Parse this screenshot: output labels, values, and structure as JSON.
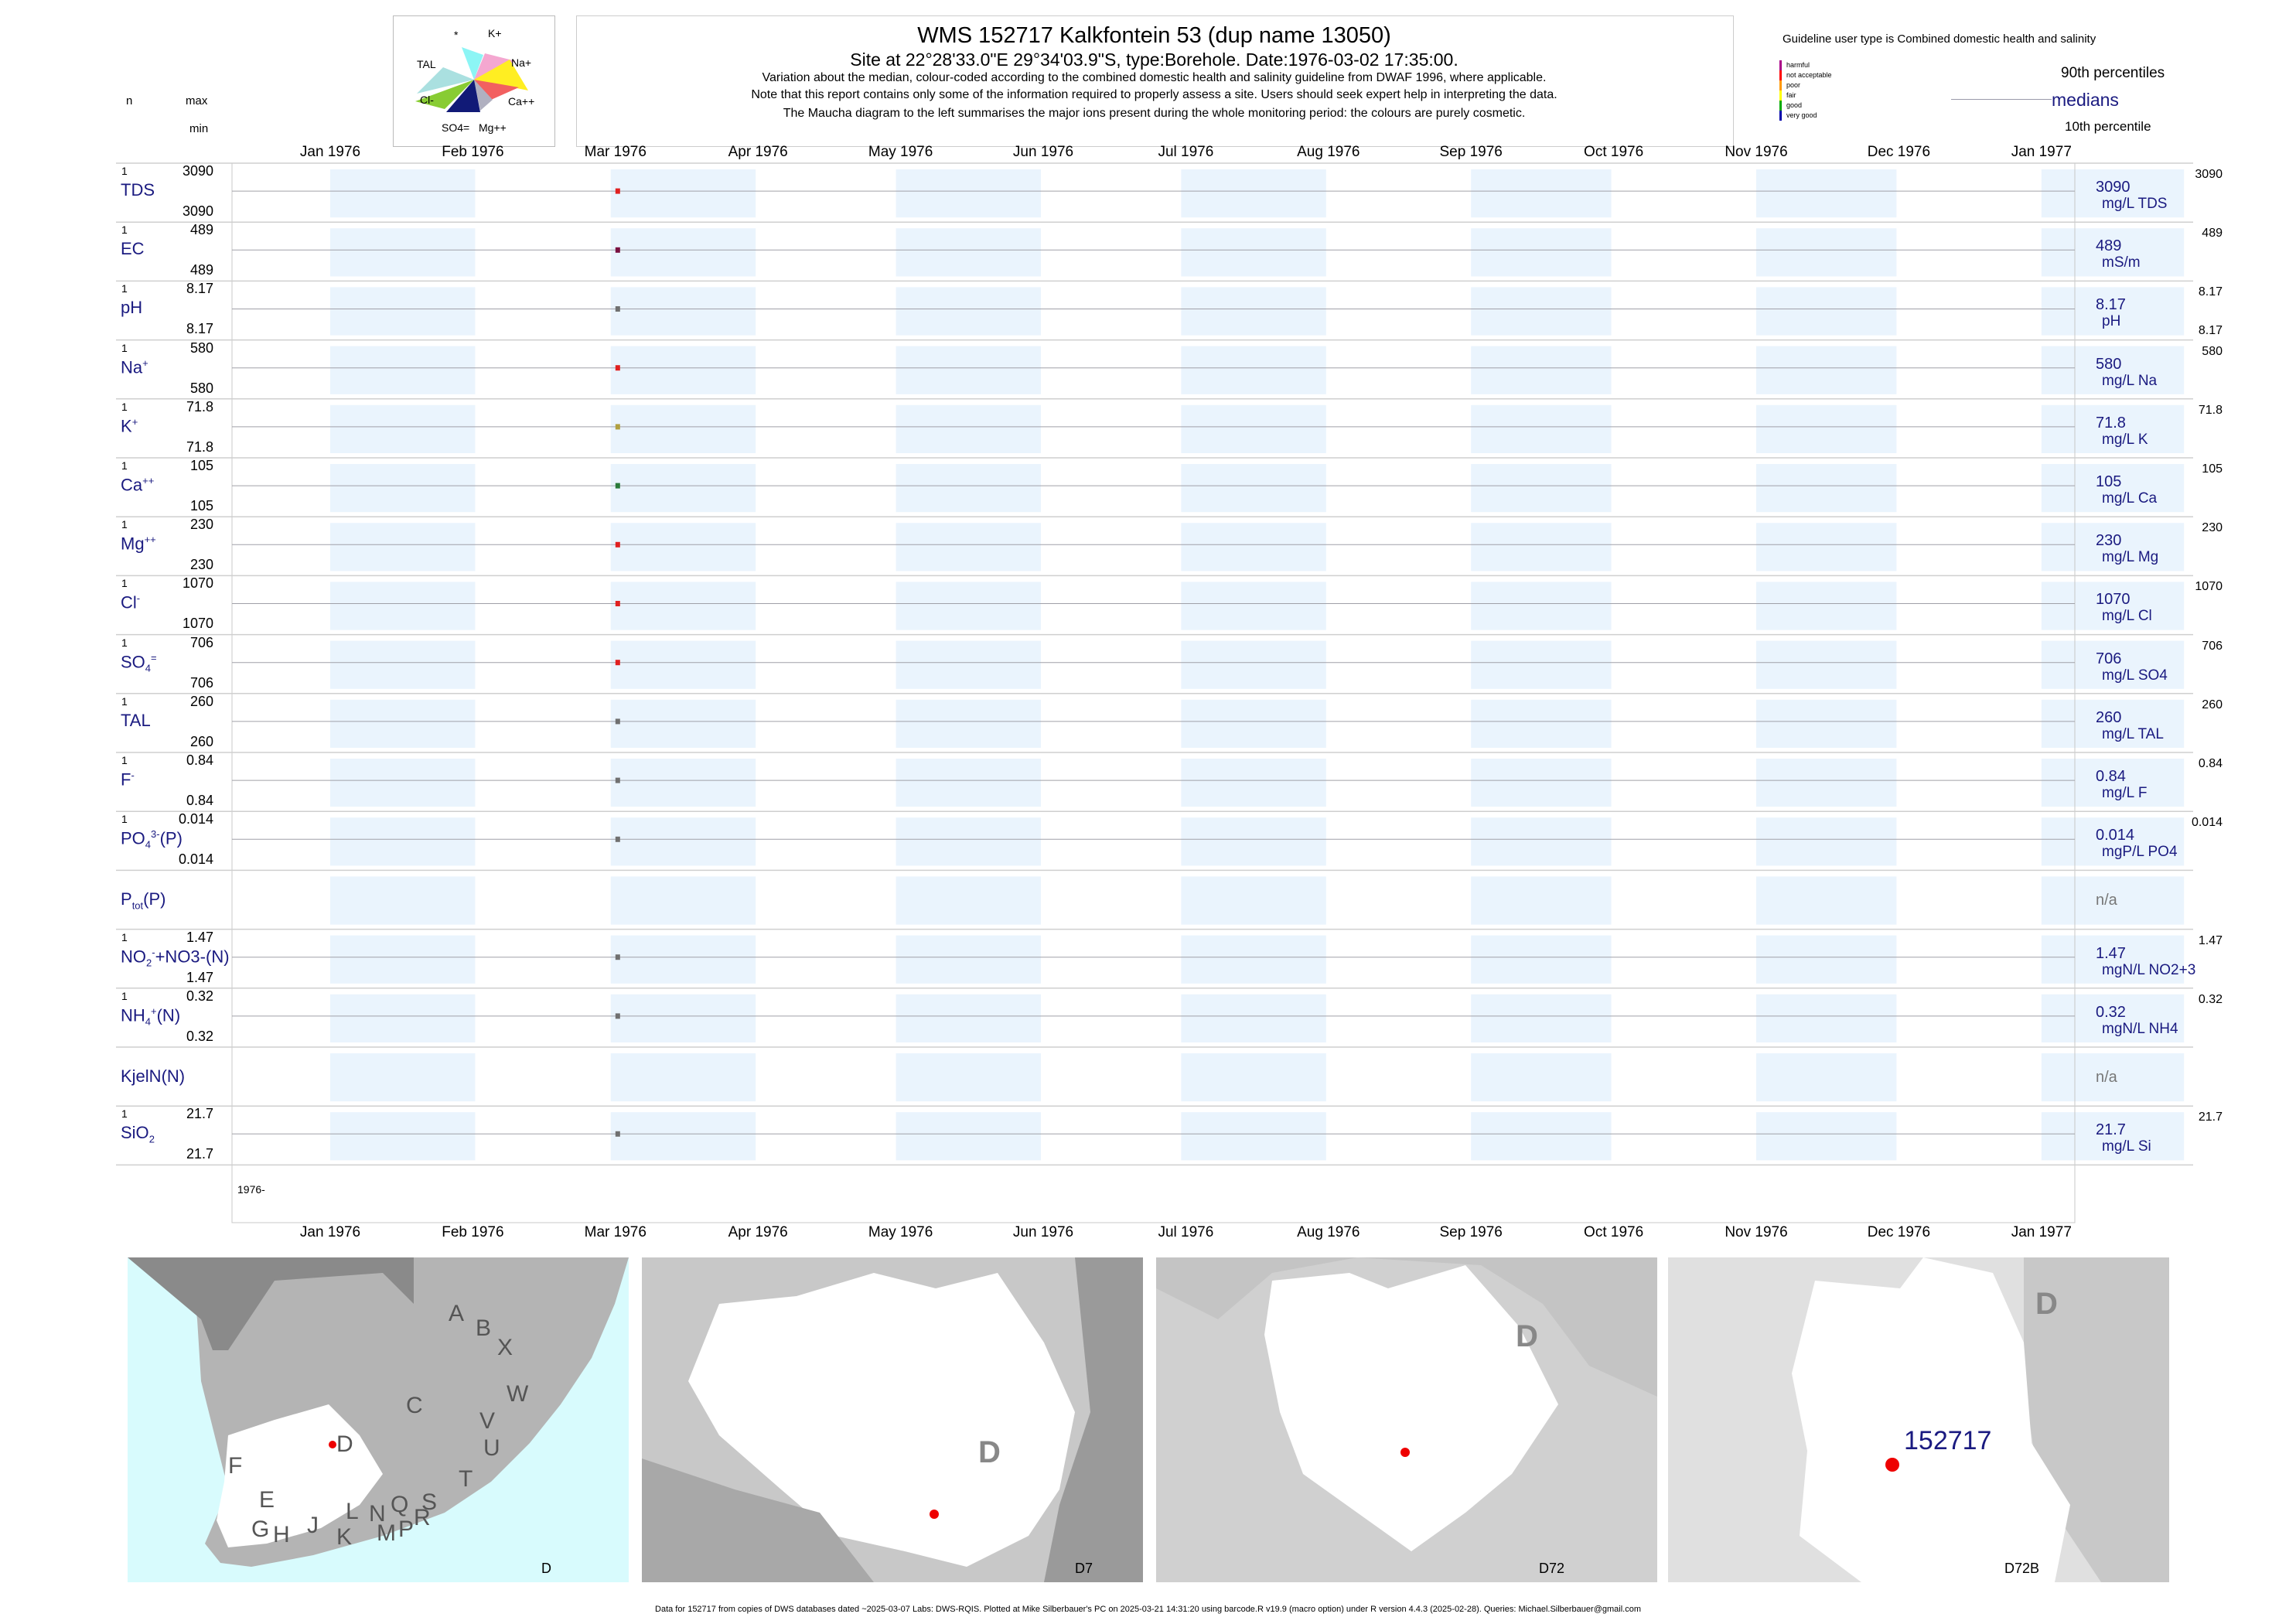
{
  "header": {
    "title": "WMS 152717  Kalkfontein 53 (dup name 13050)",
    "subtitle": "Site at 22°28'33.0\"E 29°34'03.9\"S, type:Borehole. Date:1976-03-02 17:35:00.",
    "note1": "Variation about the median,  colour-coded according to the combined domestic health and salinity guideline from DWAF 1996, where applicable.",
    "note2": "Note that this report contains only some of the information required to properly assess a site. Users should seek expert help in interpreting the data.",
    "note3": "The Maucha diagram to the left summarises the major ions present during the whole monitoring period: the colours are purely cosmetic."
  },
  "maucha": {
    "labels": [
      "*",
      "K+",
      "TAL",
      "Na+",
      "Cl-",
      "Ca++",
      "SO4=",
      "Mg++"
    ]
  },
  "legend": {
    "heading": "Guideline user type is Combined domestic health and salinity",
    "items": [
      {
        "label": "harmful",
        "color": "#aa0088"
      },
      {
        "label": "not acceptable",
        "color": "#ff0000"
      },
      {
        "label": "poor",
        "color": "#ff9900"
      },
      {
        "label": "fair",
        "color": "#ffff00"
      },
      {
        "label": "good",
        "color": "#00aa00"
      },
      {
        "label": "very good",
        "color": "#0000aa"
      }
    ],
    "p90": "90th percentiles",
    "medians": "medians",
    "p10": "10th percentile"
  },
  "left_header": {
    "n": "n",
    "max": "max",
    "min": "min"
  },
  "chart_data": {
    "type": "scatter",
    "title": "WMS 152717  Kalkfontein 53 (dup name 13050)",
    "x_ticks": [
      "Jan 1976",
      "Feb 1976",
      "Mar 1976",
      "Apr 1976",
      "May 1976",
      "Jun 1976",
      "Jul 1976",
      "Aug 1976",
      "Sep 1976",
      "Oct 1976",
      "Nov 1976",
      "Dec 1976",
      "Jan 1977"
    ],
    "year_label": "1976-",
    "sample_date": "1976-03-02",
    "parameters": [
      {
        "name": "TDS",
        "n": "1",
        "max": "3090",
        "min": "3090",
        "median": "3090",
        "unit": "mg/L TDS",
        "r_max": "3090",
        "r_min": "",
        "value": 3090,
        "color": "#e02020"
      },
      {
        "name": "EC",
        "n": "1",
        "max": "489",
        "min": "489",
        "median": "489",
        "unit": "mS/m",
        "r_max": "489",
        "r_min": "",
        "value": 489,
        "color": "#7a1040"
      },
      {
        "name": "pH",
        "n": "1",
        "max": "8.17",
        "min": "8.17",
        "median": "8.17",
        "unit": "pH",
        "r_max": "8.17",
        "r_min": "8.17",
        "value": 8.17,
        "color": "#707070"
      },
      {
        "name": "Na",
        "sup": "+",
        "n": "1",
        "max": "580",
        "min": "580",
        "median": "580",
        "unit": "mg/L Na",
        "r_max": "580",
        "r_min": "",
        "value": 580,
        "color": "#e02020"
      },
      {
        "name": "K",
        "sup": "+",
        "n": "1",
        "max": "71.8",
        "min": "71.8",
        "median": "71.8",
        "unit": "mg/L K",
        "r_max": "71.8",
        "r_min": "",
        "value": 71.8,
        "color": "#b0a040"
      },
      {
        "name": "Ca",
        "sup": "++",
        "n": "1",
        "max": "105",
        "min": "105",
        "median": "105",
        "unit": "mg/L Ca",
        "r_max": "105",
        "r_min": "",
        "value": 105,
        "color": "#2a7a3a"
      },
      {
        "name": "Mg",
        "sup": "++",
        "n": "1",
        "max": "230",
        "min": "230",
        "median": "230",
        "unit": "mg/L Mg",
        "r_max": "230",
        "r_min": "",
        "value": 230,
        "color": "#e02020"
      },
      {
        "name": "Cl",
        "sup": "-",
        "n": "1",
        "max": "1070",
        "min": "1070",
        "median": "1070",
        "unit": "mg/L Cl",
        "r_max": "1070",
        "r_min": "",
        "value": 1070,
        "color": "#e02020"
      },
      {
        "name": "SO",
        "sub": "4",
        "sup": "=",
        "n": "1",
        "max": "706",
        "min": "706",
        "median": "706",
        "unit": "mg/L SO4",
        "r_max": "706",
        "r_min": "",
        "value": 706,
        "color": "#e02020"
      },
      {
        "name": "TAL",
        "n": "1",
        "max": "260",
        "min": "260",
        "median": "260",
        "unit": "mg/L TAL",
        "r_max": "260",
        "r_min": "",
        "value": 260,
        "color": "#707070"
      },
      {
        "name": "F",
        "sup": "-",
        "n": "1",
        "max": "0.84",
        "min": "0.84",
        "median": "0.84",
        "unit": "mg/L F",
        "r_max": "0.84",
        "r_min": "",
        "value": 0.84,
        "color": "#707070"
      },
      {
        "name": "PO",
        "sub": "4",
        "sup": "3-",
        "suffix": "(P)",
        "n": "1",
        "max": "0.014",
        "min": "0.014",
        "median": "0.014",
        "unit": "mgP/L PO4",
        "r_max": "0.014",
        "r_min": "",
        "value": 0.014,
        "color": "#707070"
      },
      {
        "name": "P",
        "sub": "tot",
        "suffix": "(P)",
        "n": "",
        "max": "",
        "min": "",
        "median": "n/a",
        "unit": "",
        "r_max": "",
        "r_min": "",
        "value": null,
        "color": "#707070"
      },
      {
        "name": "NO",
        "sub": "2",
        "sup": "-",
        "suffix": "+NO3-(N)",
        "n": "1",
        "max": "1.47",
        "min": "1.47",
        "median": "1.47",
        "unit": "mgN/L NO2+3",
        "r_max": "1.47",
        "r_min": "",
        "value": 1.47,
        "color": "#707070"
      },
      {
        "name": "NH",
        "sub": "4",
        "sup": "+",
        "suffix": "(N)",
        "n": "1",
        "max": "0.32",
        "min": "0.32",
        "median": "0.32",
        "unit": "mgN/L NH4",
        "r_max": "0.32",
        "r_min": "",
        "value": 0.32,
        "color": "#707070"
      },
      {
        "name": "KjelN(N)",
        "n": "",
        "max": "",
        "min": "",
        "median": "n/a",
        "unit": "",
        "r_max": "",
        "r_min": "",
        "value": null,
        "color": "#707070"
      },
      {
        "name": "SiO",
        "sub": "2",
        "n": "1",
        "max": "21.7",
        "min": "21.7",
        "median": "21.7",
        "unit": "mg/L Si",
        "r_max": "21.7",
        "r_min": "",
        "value": 21.7,
        "color": "#707070"
      }
    ]
  },
  "maps": [
    {
      "label": "D",
      "letters": [
        "A",
        "B",
        "X",
        "W",
        "C",
        "V",
        "U",
        "T",
        "D",
        "F",
        "E",
        "G",
        "H",
        "J",
        "K",
        "L",
        "M",
        "N",
        "P",
        "Q",
        "R",
        "S"
      ]
    },
    {
      "label": "D7",
      "big_letter": "D"
    },
    {
      "label": "D72",
      "big_letter": "D"
    },
    {
      "label": "D72B",
      "big_letter": "D",
      "site_label": "152717"
    }
  ],
  "footer": "Data for 152717 from copies of DWS databases dated ~2025-03-07 Labs: DWS-RQIS. Plotted at Mike Silberbauer's PC on 2025-03-21 14:31:20 using barcode.R v19.9 (macro option) under R version 4.4.3 (2025-02-28). Queries: Michael.Silberbauer@gmail.com"
}
